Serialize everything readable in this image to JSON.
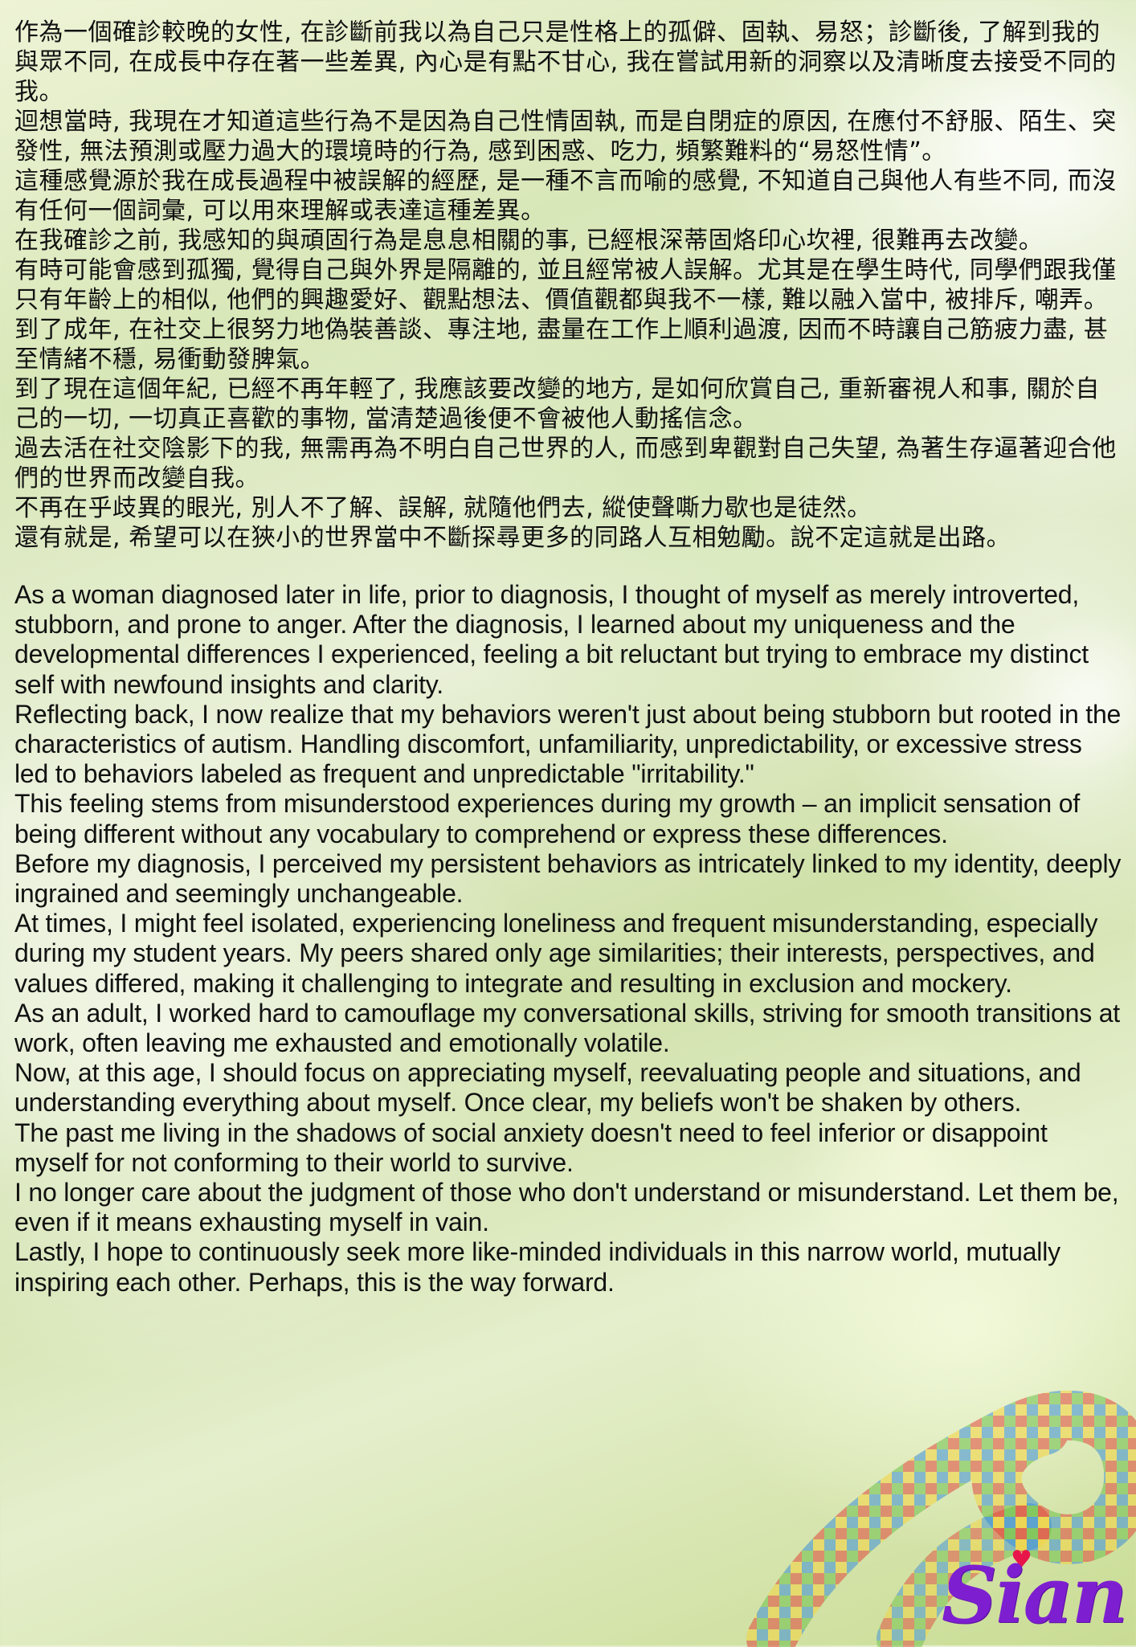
{
  "zh_paragraphs": [
    "作為一個確診較晚的女性, 在診斷前我以為自己只是性格上的孤僻、固執、易怒；診斷後, 了解到我的與眾不同, 在成長中存在著一些差異, 內心是有點不甘心, 我在嘗試用新的洞察以及清晰度去接受不同的我。",
    "迴想當時, 我現在才知道這些行為不是因為自己性情固執, 而是自閉症的原因, 在應付不舒服、陌生、突發性, 無法預測或壓力過大的環境時的行為, 感到困惑、吃力, 頻繁難料的“易怒性情”。",
    "這種感覺源於我在成長過程中被誤解的經歷, 是一種不言而喻的感覺, 不知道自己與他人有些不同, 而沒有任何一個詞彙, 可以用來理解或表達這種差異。",
    "在我確診之前, 我感知的與頑固行為是息息相關的事, 已經根深蒂固烙印心坎裡, 很難再去改變。",
    "有時可能會感到孤獨, 覺得自己與外界是隔離的, 並且經常被人誤解。尤其是在學生時代, 同學們跟我僅只有年齡上的相似, 他們的興趣愛好、觀點想法、價值觀都與我不一樣, 難以融入當中, 被排斥, 嘲弄。",
    "到了成年, 在社交上很努力地偽裝善談、專注地, 盡量在工作上順利過渡, 因而不時讓自己筋疲力盡, 甚至情緒不穩, 易衝動發脾氣。",
    "到了現在這個年紀, 已經不再年輕了, 我應該要改變的地方, 是如何欣賞自己, 重新審視人和事, 關於自己的一切, 一切真正喜歡的事物, 當清楚過後便不會被他人動搖信念。",
    "過去活在社交陰影下的我, 無需再為不明白自己世界的人, 而感到卑觀對自己失望, 為著生存逼著迎合他們的世界而改變自我。",
    "不再在乎歧異的眼光, 別人不了解、誤解, 就隨他們去, 縱使聲嘶力歇也是徒然。",
    "還有就是, 希望可以在狹小的世界當中不斷探尋更多的同路人互相勉勵。說不定這就是出路。"
  ],
  "en_paragraphs": [
    "As a woman diagnosed later in life, prior to diagnosis, I thought of myself as merely introverted, stubborn, and prone to anger. After the diagnosis, I learned about my uniqueness and the developmental differences I experienced, feeling a bit reluctant but trying to embrace my distinct self with newfound insights and clarity.",
    "Reflecting back, I now realize that my behaviors weren't just about being stubborn but rooted in the characteristics of autism. Handling discomfort, unfamiliarity, unpredictability, or excessive stress led to behaviors labeled as frequent and unpredictable \"irritability.\"",
    "This feeling stems from misunderstood experiences during my growth – an implicit sensation of being different without any vocabulary to comprehend or express these differences.",
    "Before my diagnosis, I perceived my persistent behaviors as intricately linked to my identity, deeply ingrained and seemingly unchangeable.",
    "At times, I might feel isolated, experiencing loneliness and frequent misunderstanding, especially during my student years. My peers shared only age similarities; their interests, perspectives, and values differed, making it challenging to integrate and resulting in exclusion and mockery.",
    "As an adult, I worked hard to camouflage my conversational skills, striving for smooth transitions at work, often leaving me exhausted and emotionally volatile.",
    "Now, at this age, I should focus on appreciating myself, reevaluating people and situations, and understanding everything about myself. Once clear, my beliefs won't be shaken by others.",
    "The past me living in the shadows of social anxiety doesn't need to feel inferior or disappoint myself for not conforming to their world to survive.",
    "I no longer care about the judgment of those who don't understand or misunderstand. Let them be, even if it means exhausting myself in vain.",
    "Lastly, I hope to continuously seek more like-minded individuals in this narrow world, mutually inspiring each other. Perhaps, this is the way forward."
  ],
  "signature": "Sian",
  "colors": {
    "signature": "#7d1fd0",
    "heart": "#e8154b",
    "background": "#d8e7b8"
  },
  "icons": [
    "puzzle-ribbon-icon",
    "heart-icon"
  ]
}
